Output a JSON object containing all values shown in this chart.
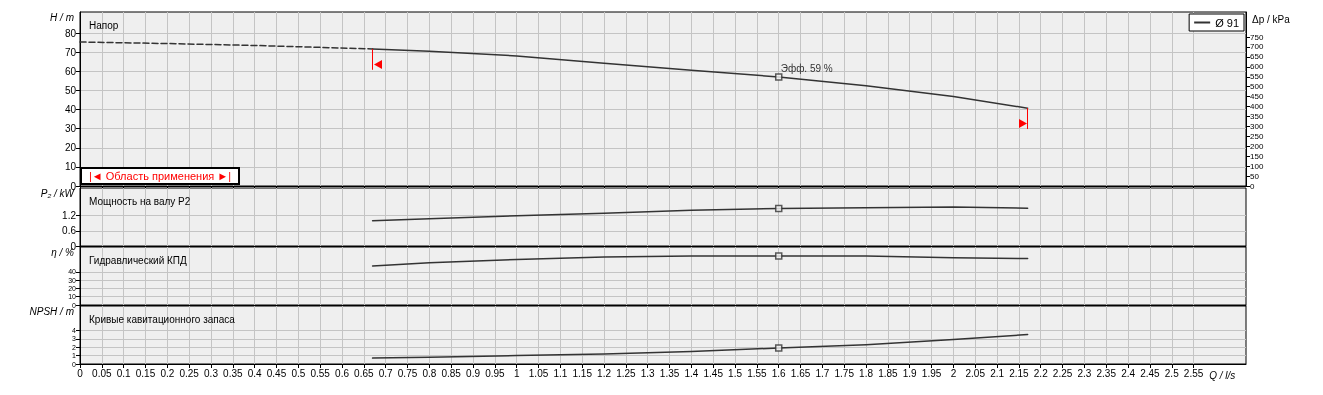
{
  "chart_data": [
    {
      "type": "line",
      "title": "Напор",
      "ylabel": "H / m",
      "y2label": "Δp / kPa",
      "xlim": [
        0,
        2.67
      ],
      "ylim": [
        0,
        91
      ],
      "y2lim": [
        0,
        876
      ],
      "xticks": [
        0,
        0.05,
        0.1,
        0.15,
        0.2,
        0.25,
        0.3,
        0.35,
        0.4,
        0.45,
        0.5,
        0.55,
        0.6,
        0.65,
        0.7,
        0.75,
        0.8,
        0.85,
        0.9,
        0.95,
        1,
        1.05,
        1.1,
        1.15,
        1.2,
        1.25,
        1.3,
        1.35,
        1.4,
        1.45,
        1.5,
        1.55,
        1.6,
        1.65,
        1.7,
        1.75,
        1.8,
        1.85,
        1.9,
        1.95,
        2,
        2.05,
        2.1,
        2.15,
        2.2,
        2.25,
        2.3,
        2.35,
        2.4,
        2.45,
        2.5,
        2.55
      ],
      "yticks": [
        0,
        10,
        20,
        30,
        40,
        50,
        60,
        70,
        80
      ],
      "y2ticks": [
        0,
        50,
        100,
        150,
        200,
        250,
        300,
        350,
        400,
        450,
        500,
        550,
        600,
        650,
        700,
        750
      ],
      "series": [
        {
          "name": "Ø 91",
          "color": "#333333",
          "x": [
            0.67,
            0.8,
            1.0,
            1.2,
            1.4,
            1.6,
            1.8,
            2.0,
            2.17
          ],
          "values": [
            71.7,
            70.5,
            68,
            64.2,
            60.6,
            57,
            52.4,
            46.8,
            40.7
          ]
        },
        {
          "color": "#333333",
          "line_style": "dashed",
          "x": [
            0,
            0.2,
            0.4,
            0.67
          ],
          "values": [
            75.3,
            74.5,
            73.5,
            71.7
          ]
        },
        {
          "type": "scatter",
          "marker": "square",
          "color": "#333333",
          "x": [
            1.6
          ],
          "values": [
            57
          ]
        }
      ],
      "annotations": [
        {
          "text": "Эфф. 59 %",
          "x": 1.6,
          "y": 57
        },
        "|◄ Область применения ►|"
      ],
      "ref_lines": [
        {
          "axis": "x",
          "value": 0.67,
          "color": "#ff0000"
        },
        {
          "axis": "x",
          "value": 2.17,
          "color": "#ff0000"
        }
      ],
      "grid": true,
      "legend": "top right",
      "marker": "none",
      "line_style": "solid",
      "tick_labels": "y"
    },
    {
      "type": "line",
      "title": "Мощность на валу P2",
      "ylabel": "P₂ / kW",
      "xlim": [
        0,
        2.67
      ],
      "ylim": [
        0,
        2.3
      ],
      "xticks": [
        0,
        0.05,
        0.1,
        0.15,
        0.2,
        0.25,
        0.3,
        0.35,
        0.4,
        0.45,
        0.5,
        0.55,
        0.6,
        0.65,
        0.7,
        0.75,
        0.8,
        0.85,
        0.9,
        0.95,
        1,
        1.05,
        1.1,
        1.15,
        1.2,
        1.25,
        1.3,
        1.35,
        1.4,
        1.45,
        1.5,
        1.55,
        1.6,
        1.65,
        1.7,
        1.75,
        1.8,
        1.85,
        1.9,
        1.95,
        2,
        2.05,
        2.1,
        2.15,
        2.2,
        2.25,
        2.3,
        2.35,
        2.4,
        2.45,
        2.5,
        2.55
      ],
      "yticks": [
        0,
        0.6,
        1.2
      ],
      "series": [
        {
          "color": "#333333",
          "x": [
            0.67,
            0.8,
            1.0,
            1.2,
            1.4,
            1.6,
            1.8,
            2.0,
            2.17
          ],
          "values": [
            1.0,
            1.08,
            1.2,
            1.3,
            1.42,
            1.49,
            1.52,
            1.55,
            1.5
          ]
        },
        {
          "type": "scatter",
          "marker": "square",
          "color": "#333333",
          "x": [
            1.6
          ],
          "values": [
            1.49
          ]
        }
      ],
      "grid": true,
      "marker": "none",
      "line_style": "solid",
      "tick_labels": "y"
    },
    {
      "type": "line",
      "title": "Гидравлический КПД",
      "ylabel": "η / %",
      "xlim": [
        0,
        2.67
      ],
      "ylim": [
        0,
        70
      ],
      "xticks": [
        0,
        0.05,
        0.1,
        0.15,
        0.2,
        0.25,
        0.3,
        0.35,
        0.4,
        0.45,
        0.5,
        0.55,
        0.6,
        0.65,
        0.7,
        0.75,
        0.8,
        0.85,
        0.9,
        0.95,
        1,
        1.05,
        1.1,
        1.15,
        1.2,
        1.25,
        1.3,
        1.35,
        1.4,
        1.45,
        1.5,
        1.55,
        1.6,
        1.65,
        1.7,
        1.75,
        1.8,
        1.85,
        1.9,
        1.95,
        2,
        2.05,
        2.1,
        2.15,
        2.2,
        2.25,
        2.3,
        2.35,
        2.4,
        2.45,
        2.5,
        2.55
      ],
      "yticks": [
        0,
        10,
        20,
        30,
        40
      ],
      "series": [
        {
          "color": "#333333",
          "x": [
            0.67,
            0.8,
            1.0,
            1.2,
            1.4,
            1.6,
            1.8,
            2.0,
            2.17
          ],
          "values": [
            47,
            51,
            55,
            58,
            59,
            59,
            59,
            57,
            56
          ]
        },
        {
          "type": "scatter",
          "marker": "square",
          "color": "#333333",
          "x": [
            1.6
          ],
          "values": [
            59
          ]
        }
      ],
      "grid": true,
      "marker": "none",
      "line_style": "solid",
      "tick_labels": "y"
    },
    {
      "type": "line",
      "title": "Кривые кавитационного запаса",
      "ylabel": "NPSH / m",
      "xlabel": "Q / l/s",
      "xlim": [
        0,
        2.67
      ],
      "ylim": [
        0,
        6.9
      ],
      "xticks": [
        0,
        0.05,
        0.1,
        0.15,
        0.2,
        0.25,
        0.3,
        0.35,
        0.4,
        0.45,
        0.5,
        0.55,
        0.6,
        0.65,
        0.7,
        0.75,
        0.8,
        0.85,
        0.9,
        0.95,
        1,
        1.05,
        1.1,
        1.15,
        1.2,
        1.25,
        1.3,
        1.35,
        1.4,
        1.45,
        1.5,
        1.55,
        1.6,
        1.65,
        1.7,
        1.75,
        1.8,
        1.85,
        1.9,
        1.95,
        2,
        2.05,
        2.1,
        2.15,
        2.2,
        2.25,
        2.3,
        2.35,
        2.4,
        2.45,
        2.5,
        2.55
      ],
      "yticks": [
        0,
        1,
        2,
        3,
        4
      ],
      "series": [
        {
          "color": "#333333",
          "x": [
            0.67,
            0.8,
            1.0,
            1.2,
            1.4,
            1.6,
            1.8,
            2.0,
            2.17
          ],
          "values": [
            0.7,
            0.8,
            1,
            1.2,
            1.5,
            1.9,
            2.3,
            2.9,
            3.5
          ]
        },
        {
          "type": "scatter",
          "marker": "square",
          "color": "#333333",
          "x": [
            1.6
          ],
          "values": [
            1.9
          ]
        }
      ],
      "grid": true,
      "marker": "none",
      "line_style": "solid"
    }
  ]
}
